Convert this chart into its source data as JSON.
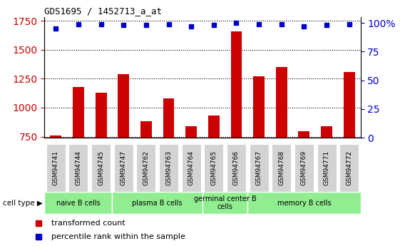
{
  "title": "GDS1695 / 1452713_a_at",
  "samples": [
    "GSM94741",
    "GSM94744",
    "GSM94745",
    "GSM94747",
    "GSM94762",
    "GSM94763",
    "GSM94764",
    "GSM94765",
    "GSM94766",
    "GSM94767",
    "GSM94768",
    "GSM94769",
    "GSM94771",
    "GSM94772"
  ],
  "transformed_counts": [
    760,
    1175,
    1130,
    1290,
    880,
    1080,
    840,
    930,
    1660,
    1270,
    1350,
    795,
    840,
    1310
  ],
  "percentile_ranks": [
    95,
    99,
    99,
    98,
    98,
    99,
    97,
    98,
    100,
    99,
    99,
    97,
    98,
    99
  ],
  "group_boundaries": [
    0,
    3,
    7,
    9,
    14
  ],
  "group_labels": [
    "naive B cells",
    "plasma B cells",
    "germinal center B\ncells",
    "memory B cells"
  ],
  "ylim_left": [
    740,
    1780
  ],
  "ylim_right": [
    0,
    105
  ],
  "bar_color": "#CC0000",
  "dot_color": "#0000CC",
  "bar_width": 0.5,
  "background_color": "#ffffff",
  "axis_color_left": "#CC0000",
  "axis_color_right": "#0000CC",
  "yticks_left": [
    750,
    1000,
    1250,
    1500,
    1750
  ],
  "yticks_right": [
    0,
    25,
    50,
    75,
    100
  ],
  "cell_type_label": "cell type",
  "legend_label_red": "transformed count",
  "legend_label_blue": "percentile rank within the sample"
}
